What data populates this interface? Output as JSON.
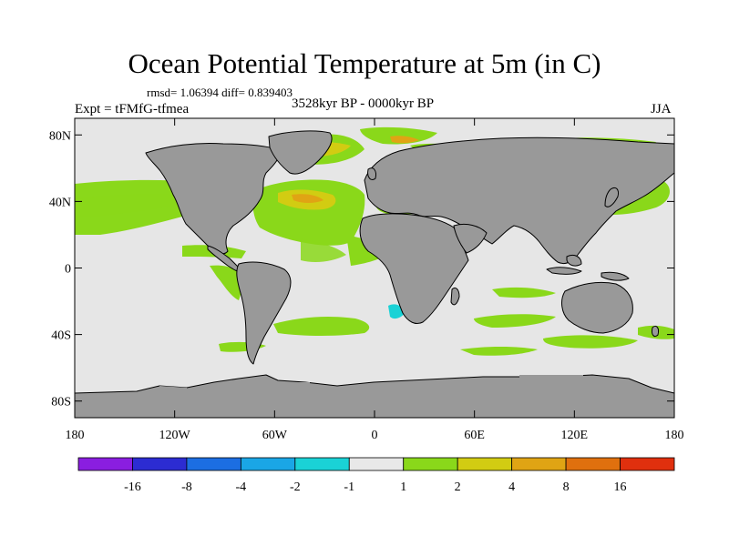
{
  "title": "Ocean Potential Temperature at 5m (in C)",
  "stats": "rmsd= 1.06394 diff= 0.839403",
  "period": "3528kyr BP - 0000kyr BP",
  "experiment": "Expt = tFMfG-tfmea",
  "season": "JJA",
  "map": {
    "projection": "cylindrical equidistant",
    "lon_range": [
      -180,
      180
    ],
    "lat_range": [
      -90,
      90
    ],
    "lat_ticks": [
      {
        "value": 80,
        "label": "80N"
      },
      {
        "value": 40,
        "label": "40N"
      },
      {
        "value": 0,
        "label": "0"
      },
      {
        "value": -40,
        "label": "40S"
      },
      {
        "value": -80,
        "label": "80S"
      }
    ],
    "lon_ticks": [
      {
        "value": -180,
        "label": "180"
      },
      {
        "value": -120,
        "label": "120W"
      },
      {
        "value": -60,
        "label": "60W"
      },
      {
        "value": 0,
        "label": "0"
      },
      {
        "value": 60,
        "label": "60E"
      },
      {
        "value": 120,
        "label": "120E"
      },
      {
        "value": 180,
        "label": "180"
      }
    ],
    "colors": {
      "land": "#999999",
      "ocean_neutral": "#e6e6e6",
      "coastline": "#000000"
    }
  },
  "colorbar": {
    "colors": [
      "#8a1ee0",
      "#2c2cd2",
      "#1c6ee2",
      "#1aa6e6",
      "#1ad2d6",
      "#e8e8e8",
      "#8ad81a",
      "#d2cc12",
      "#e0a414",
      "#e0700e",
      "#e0300e"
    ],
    "labels": [
      "-16",
      "-8",
      "-4",
      "-2",
      "-1",
      "1",
      "2",
      "4",
      "8",
      "16"
    ]
  }
}
